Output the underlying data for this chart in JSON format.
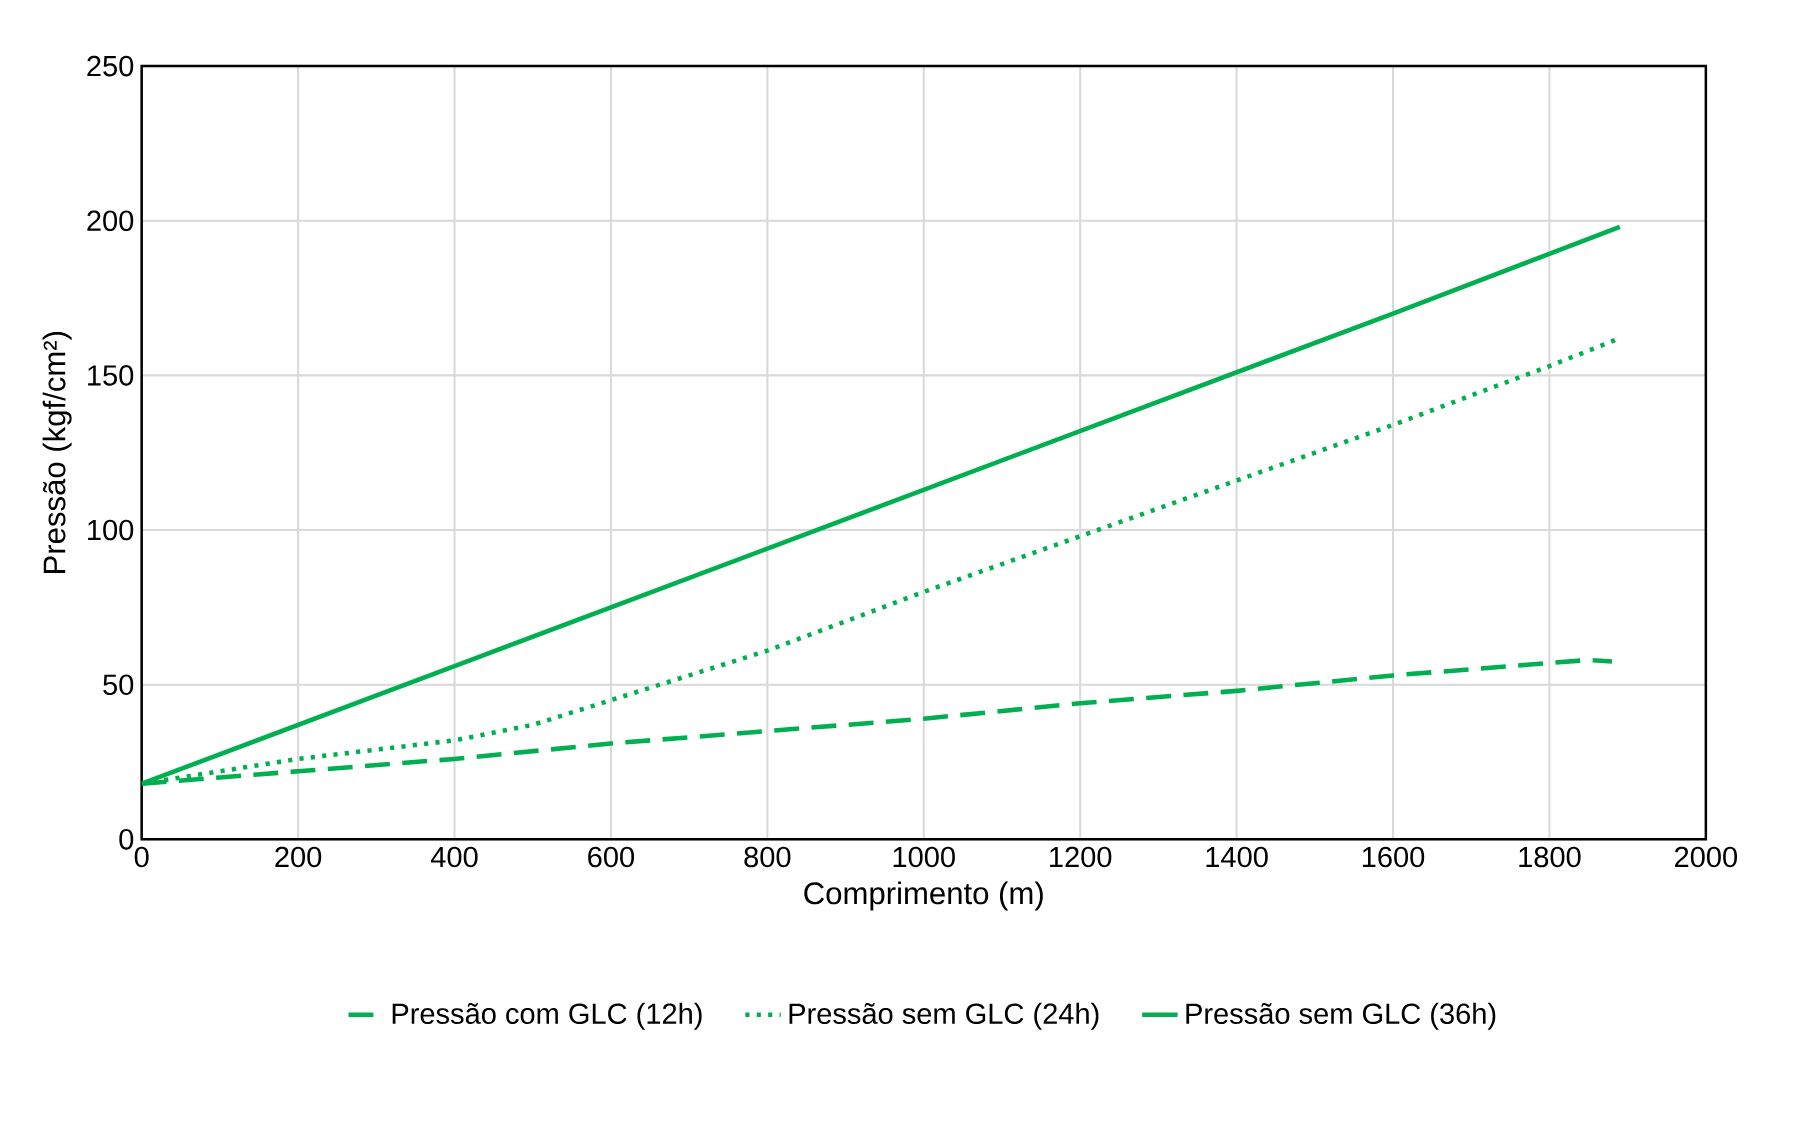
{
  "chart_data": {
    "type": "line",
    "xlabel": "Comprimento (m)",
    "ylabel": "Pressão (kgf/cm²)",
    "xlim": [
      0,
      2000
    ],
    "xticks": [
      0,
      200,
      400,
      600,
      800,
      1000,
      1200,
      1400,
      1600,
      1800,
      2000
    ],
    "ylim": [
      0,
      250
    ],
    "yticks": [
      0,
      50,
      100,
      150,
      200,
      250
    ],
    "grid": true,
    "legend": "bottom",
    "marker": "none",
    "series": [
      {
        "name": "Pressão com GLC (12h)",
        "color": "#00b050",
        "line_style": "dashed",
        "x": [
          0,
          100,
          200,
          400,
          600,
          800,
          1000,
          1200,
          1400,
          1600,
          1800,
          1850,
          1880
        ],
        "values": [
          18,
          20,
          22,
          26,
          31,
          35,
          39,
          44,
          48,
          53,
          57,
          58,
          57.5
        ]
      },
      {
        "name": "Pressão sem GLC (24h)",
        "color": "#00b050",
        "line_style": "dotted",
        "x": [
          0,
          100,
          200,
          300,
          400,
          500,
          600,
          700,
          800,
          1000,
          1200,
          1400,
          1600,
          1800,
          1890
        ],
        "values": [
          18,
          22,
          26,
          29,
          32,
          37,
          45,
          53,
          61,
          80,
          98,
          116,
          134,
          153,
          162
        ]
      },
      {
        "name": "Pressão sem GLC (36h)",
        "color": "#00b050",
        "line_style": "solid",
        "x": [
          0,
          400,
          800,
          1200,
          1600,
          1890
        ],
        "values": [
          18,
          56,
          94,
          132,
          170,
          198
        ]
      }
    ]
  }
}
